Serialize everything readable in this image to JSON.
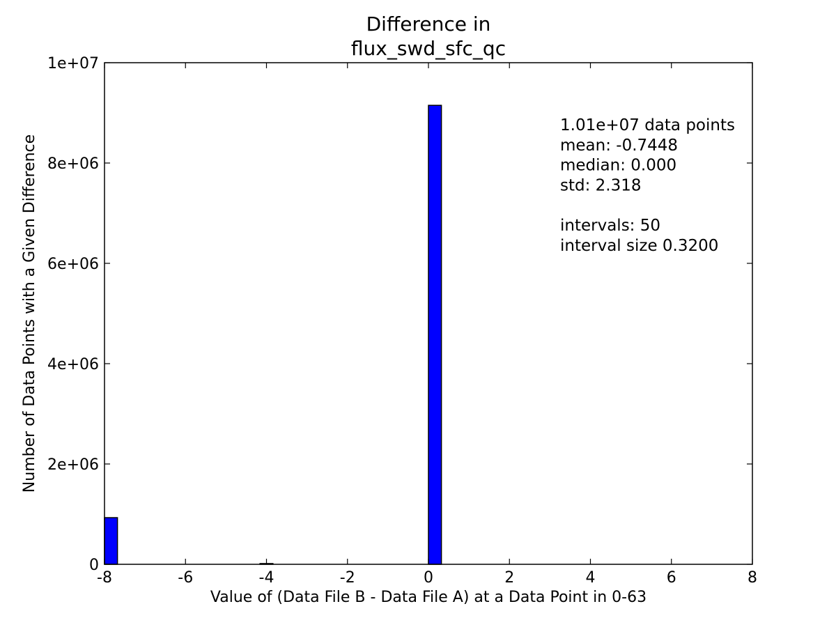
{
  "chart_data": {
    "type": "bar",
    "title_lines": [
      "Difference in",
      "flux_swd_sfc_qc"
    ],
    "xlabel": "Value of (Data File B - Data File A) at a Data Point in 0-63",
    "ylabel": "Number of Data Points with a Given Difference",
    "xlim": [
      -8,
      8
    ],
    "ylim": [
      0,
      10000000
    ],
    "xticks": [
      -8,
      -6,
      -4,
      -2,
      0,
      2,
      4,
      6,
      8
    ],
    "xtick_labels": [
      "-8",
      "-6",
      "-4",
      "-2",
      "0",
      "2",
      "4",
      "6",
      "8"
    ],
    "yticks": [
      0,
      2000000,
      4000000,
      6000000,
      8000000,
      10000000
    ],
    "ytick_labels": [
      "0",
      "2e+06",
      "4e+06",
      "6e+06",
      "8e+06",
      "1e+07"
    ],
    "bar_color": "#0000ff",
    "bars": [
      {
        "x0": -8.0,
        "x1": -7.68,
        "value": 930000
      },
      {
        "x0": -4.16,
        "x1": -3.84,
        "value": 15000
      },
      {
        "x0": 0.0,
        "x1": 0.32,
        "value": 9150000
      }
    ],
    "annotation_lines": [
      "1.01e+07 data points",
      "mean: -0.7448",
      "median: 0.000",
      "std: 2.318",
      "",
      "intervals: 50",
      "interval size 0.3200"
    ],
    "grid": false
  }
}
